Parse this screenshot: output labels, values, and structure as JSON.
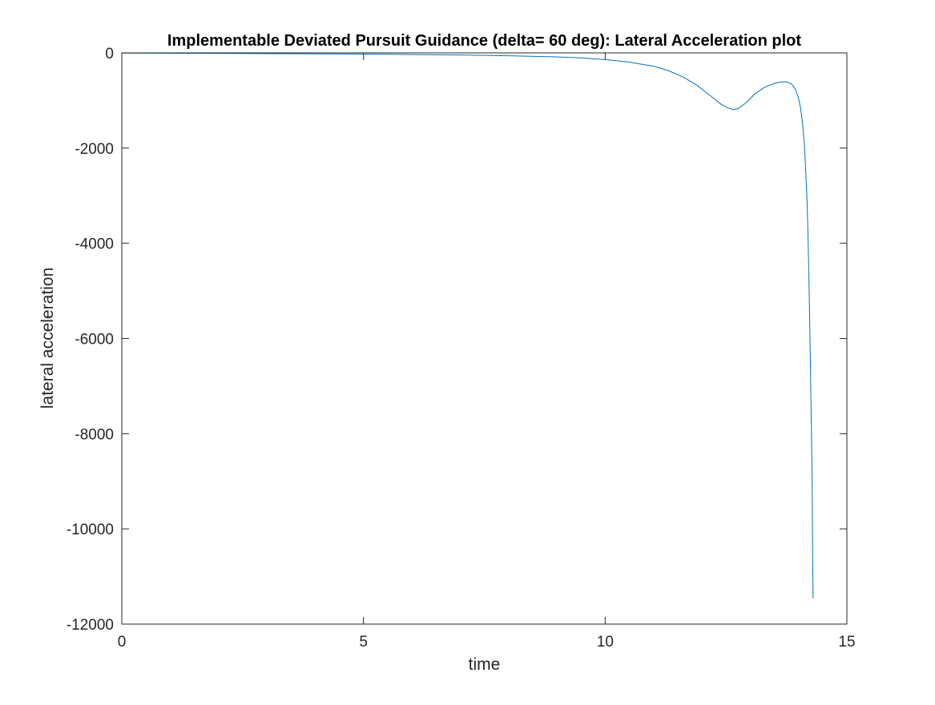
{
  "chart_data": {
    "type": "line",
    "title": "Implementable Deviated Pursuit Guidance (delta= 60 deg): Lateral Acceleration plot",
    "xlabel": "time",
    "ylabel": "lateral acceleration",
    "xlim": [
      0,
      15
    ],
    "ylim": [
      -12000,
      0
    ],
    "xticks": [
      0,
      5,
      10,
      15
    ],
    "xtick_labels": [
      "0",
      "5",
      "10",
      "15"
    ],
    "yticks": [
      0,
      -2000,
      -4000,
      -6000,
      -8000,
      -10000,
      -12000
    ],
    "ytick_labels": [
      "0",
      "-2000",
      "-4000",
      "-6000",
      "-8000",
      "-10000",
      "-12000"
    ],
    "grid": false,
    "box": true,
    "line_color": "#0072BD",
    "series": [
      {
        "x": [
          0,
          2,
          4,
          5,
          6,
          7,
          8,
          9,
          9.5,
          10,
          10.5,
          11,
          11.3,
          11.6,
          11.9,
          12.2,
          12.4,
          12.55,
          12.65,
          12.75,
          12.9,
          13.1,
          13.3,
          13.5,
          13.65,
          13.75,
          13.82,
          13.88,
          13.94,
          14.0,
          14.04,
          14.08,
          14.12,
          14.15,
          14.18,
          14.2,
          14.22,
          14.24,
          14.26,
          14.28,
          14.29,
          14.3
        ],
        "y": [
          -5,
          -10,
          -20,
          -25,
          -35,
          -45,
          -60,
          -85,
          -105,
          -140,
          -195,
          -280,
          -370,
          -500,
          -680,
          -920,
          -1080,
          -1160,
          -1190,
          -1170,
          -1060,
          -860,
          -720,
          -640,
          -610,
          -610,
          -630,
          -680,
          -780,
          -950,
          -1150,
          -1450,
          -1900,
          -2500,
          -3200,
          -4000,
          -5000,
          -6200,
          -7500,
          -8800,
          -10200,
          -11450
        ]
      }
    ]
  }
}
